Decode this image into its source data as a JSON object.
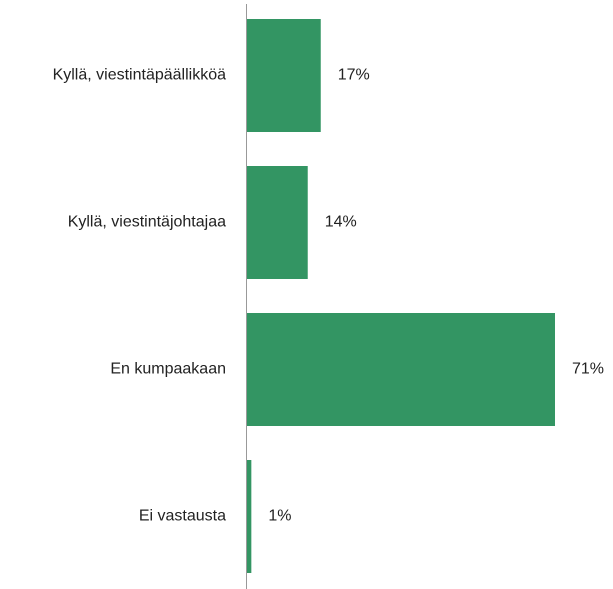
{
  "chart_data": {
    "type": "bar",
    "orientation": "horizontal",
    "categories": [
      "Kyllä, viestintäpäällikköä",
      "Kyllä, viestintäjohtajaa",
      "En kumpaakaan",
      "Ei vastausta"
    ],
    "values": [
      17,
      14,
      71,
      1
    ],
    "value_labels": [
      "17%",
      "14%",
      "71%",
      "1%"
    ],
    "color": "#339563"
  }
}
